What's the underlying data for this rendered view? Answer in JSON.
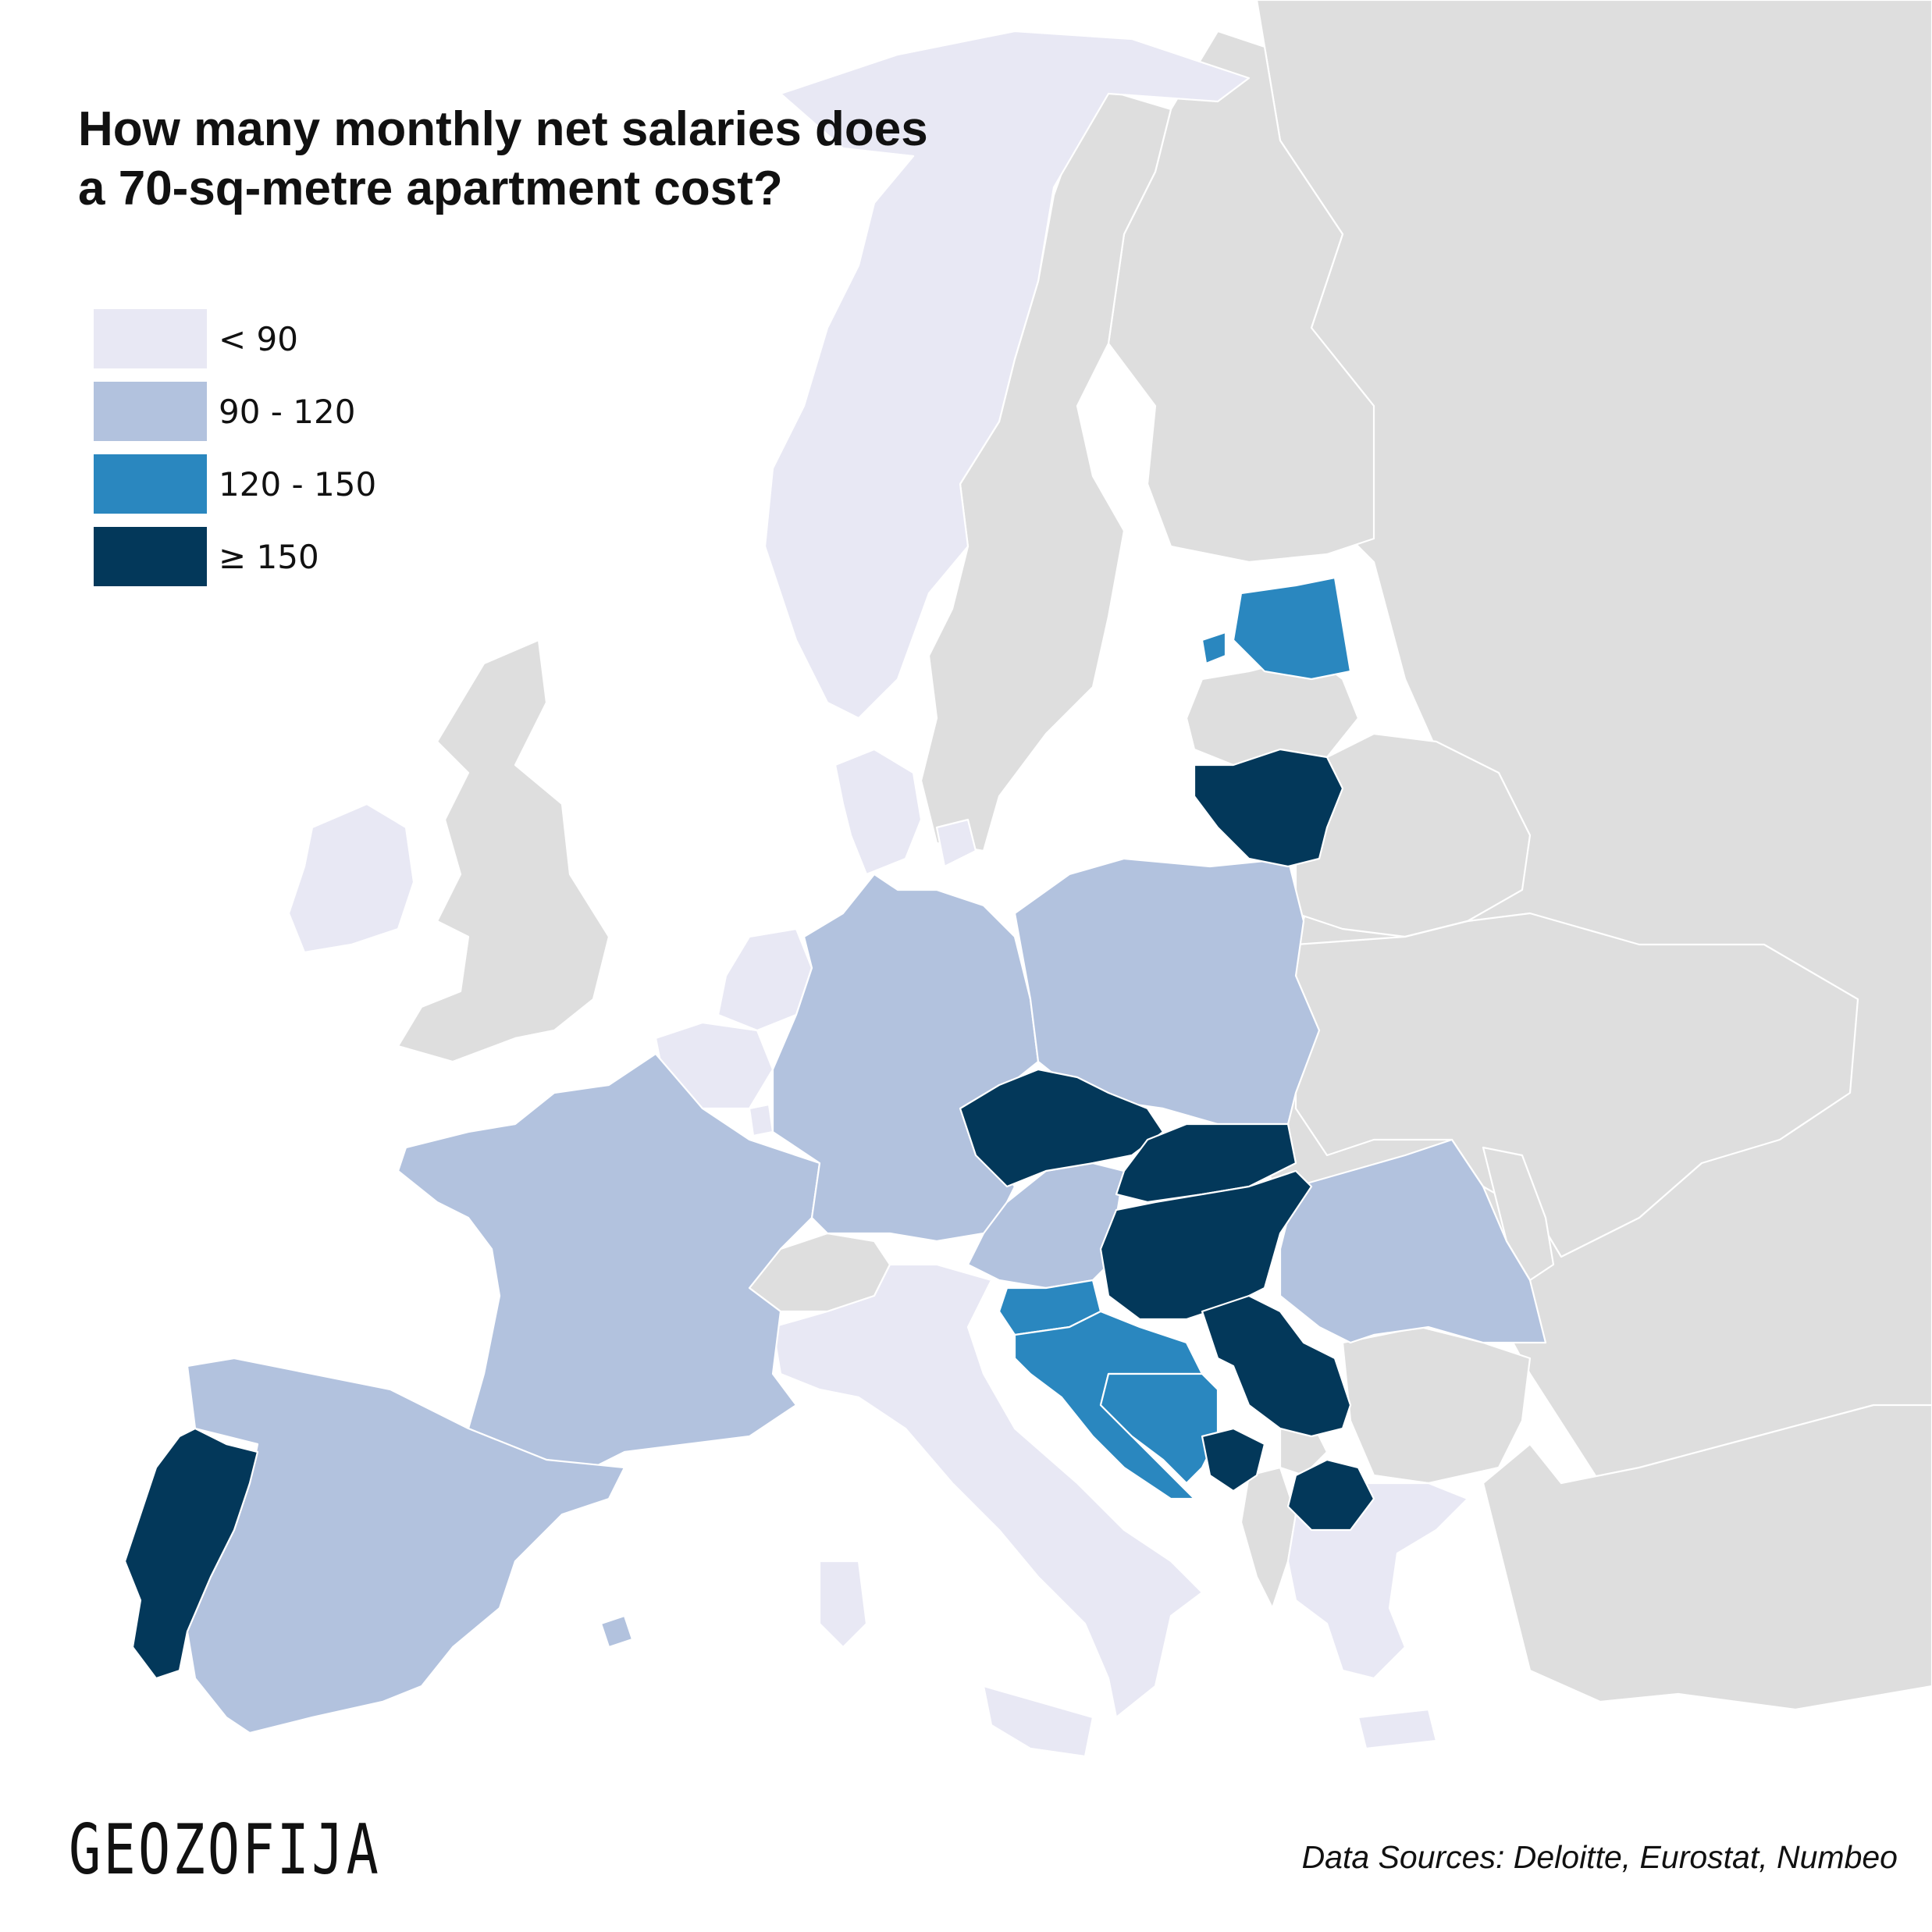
{
  "title": "How many monthly net salaries does a 70-sq-metre apartment cost?",
  "legend": [
    {
      "label": "< 90",
      "color": "#e8e8f4"
    },
    {
      "label": "90 - 120",
      "color": "#b2c2de"
    },
    {
      "label": "120 - 150",
      "color": "#2a87bf"
    },
    {
      "label": "≥ 150",
      "color": "#03385a"
    }
  ],
  "no_data_color": "#dedede",
  "brand": "GEOZOFIJA",
  "sources": "Data Sources: Deloitte, Eurostat, Numbeo",
  "countries": [
    {
      "name": "Norway",
      "class": "< 90"
    },
    {
      "name": "Denmark",
      "class": "< 90"
    },
    {
      "name": "Ireland",
      "class": "< 90"
    },
    {
      "name": "Netherlands",
      "class": "< 90"
    },
    {
      "name": "Belgium",
      "class": "< 90"
    },
    {
      "name": "Luxembourg",
      "class": "< 90"
    },
    {
      "name": "Italy",
      "class": "< 90"
    },
    {
      "name": "Greece",
      "class": "< 90"
    },
    {
      "name": "Cyprus",
      "class": "< 90"
    },
    {
      "name": "France",
      "class": "90 - 120"
    },
    {
      "name": "Spain",
      "class": "90 - 120"
    },
    {
      "name": "Germany",
      "class": "90 - 120"
    },
    {
      "name": "Poland",
      "class": "90 - 120"
    },
    {
      "name": "Austria",
      "class": "90 - 120"
    },
    {
      "name": "Romania",
      "class": "90 - 120"
    },
    {
      "name": "Estonia",
      "class": "120 - 150"
    },
    {
      "name": "Slovenia",
      "class": "120 - 150"
    },
    {
      "name": "Croatia",
      "class": "120 - 150"
    },
    {
      "name": "Bosnia and Herzegovina",
      "class": "120 - 150"
    },
    {
      "name": "Lithuania",
      "class": "≥ 150"
    },
    {
      "name": "Czechia",
      "class": "≥ 150"
    },
    {
      "name": "Slovakia",
      "class": "≥ 150"
    },
    {
      "name": "Hungary",
      "class": "≥ 150"
    },
    {
      "name": "Serbia",
      "class": "≥ 150"
    },
    {
      "name": "Montenegro",
      "class": "≥ 150"
    },
    {
      "name": "North Macedonia",
      "class": "≥ 150"
    },
    {
      "name": "Portugal",
      "class": "≥ 150"
    },
    {
      "name": "United Kingdom",
      "class": "no data"
    },
    {
      "name": "Sweden",
      "class": "no data"
    },
    {
      "name": "Finland",
      "class": "no data"
    },
    {
      "name": "Latvia",
      "class": "no data"
    },
    {
      "name": "Switzerland",
      "class": "no data"
    },
    {
      "name": "Belarus",
      "class": "no data"
    },
    {
      "name": "Ukraine",
      "class": "no data"
    },
    {
      "name": "Moldova",
      "class": "no data"
    },
    {
      "name": "Bulgaria",
      "class": "no data"
    },
    {
      "name": "Albania",
      "class": "no data"
    },
    {
      "name": "Kosovo",
      "class": "no data"
    },
    {
      "name": "Russia",
      "class": "no data"
    },
    {
      "name": "Turkey",
      "class": "no data"
    }
  ]
}
